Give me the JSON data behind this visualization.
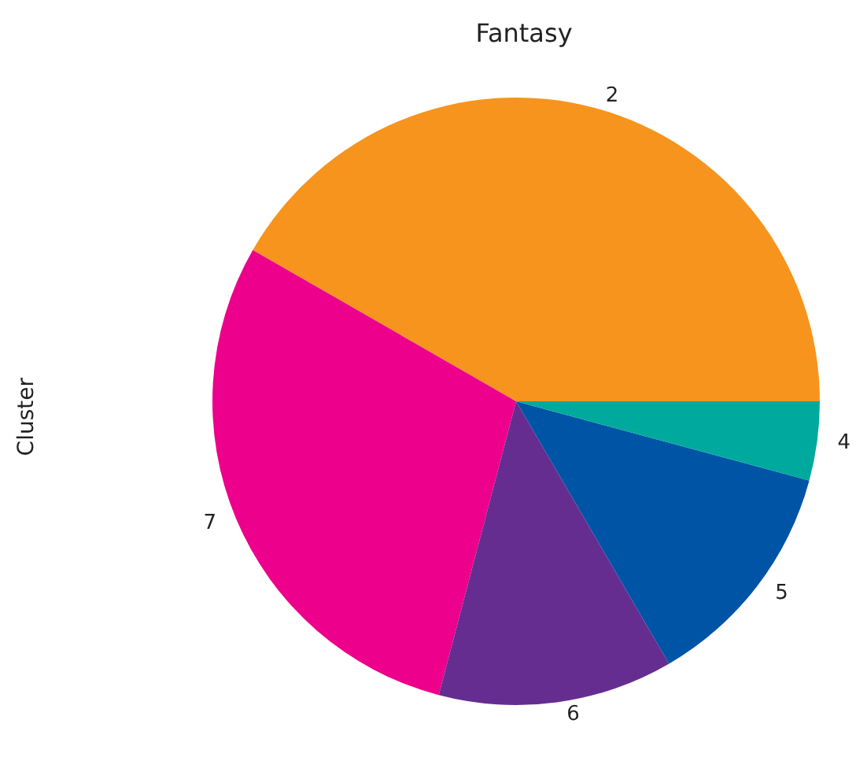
{
  "chart_data": {
    "type": "pie",
    "title": "Fantasy",
    "ylabel": "Cluster",
    "categories": [
      "2",
      "7",
      "6",
      "5",
      "4"
    ],
    "values": [
      41.7,
      29.2,
      12.5,
      12.4,
      4.2
    ],
    "colors": [
      "#f7941d",
      "#ec008c",
      "#662d91",
      "#0054a6",
      "#00a99d"
    ],
    "legend": false
  }
}
